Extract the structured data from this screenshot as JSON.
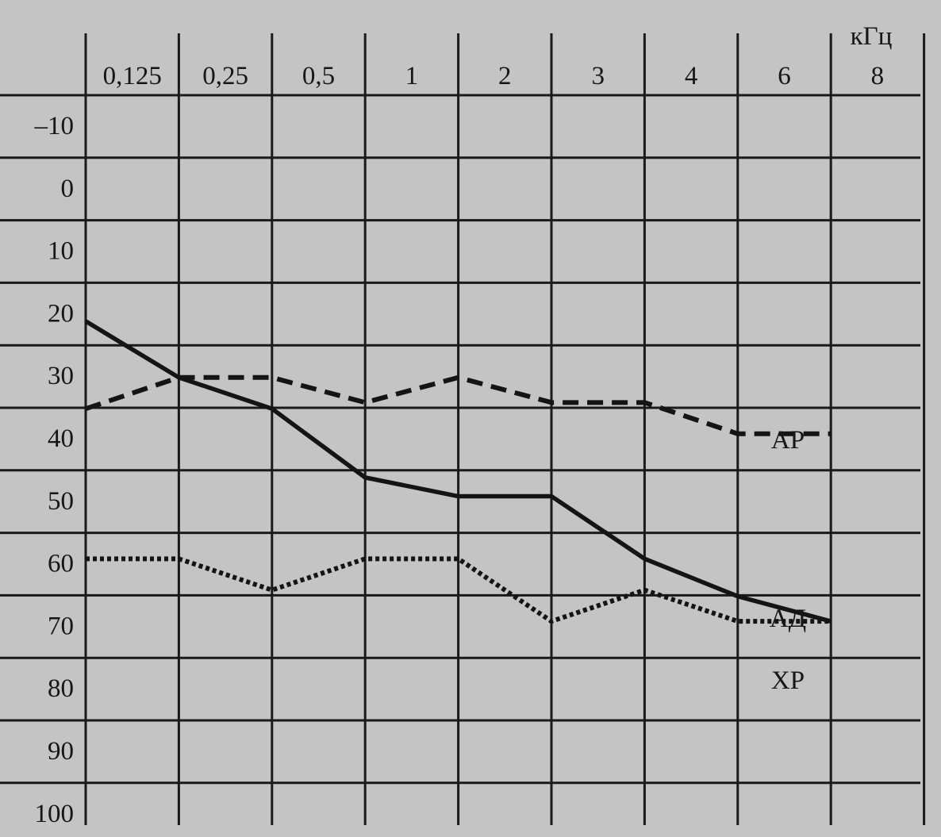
{
  "chart_data": {
    "type": "line",
    "x_unit": "кГц",
    "categories": [
      "0,125",
      "0,25",
      "0,5",
      "1",
      "2",
      "3",
      "4",
      "6",
      "8"
    ],
    "y_ticks": [
      "–10",
      "0",
      "10",
      "20",
      "30",
      "40",
      "50",
      "60",
      "70",
      "80",
      "90",
      "100"
    ],
    "ylim": [
      -10,
      100
    ],
    "y_inverted": true,
    "grid": true,
    "series": [
      {
        "name": "АР",
        "style": "dashed",
        "values": [
          40,
          35,
          35,
          39,
          35,
          39,
          39,
          44,
          44
        ]
      },
      {
        "name": "АД",
        "style": "solid",
        "values": [
          26,
          35,
          40,
          51,
          54,
          54,
          64,
          70,
          74
        ]
      },
      {
        "name": "ХР",
        "style": "dotted",
        "values": [
          64,
          64,
          69,
          64,
          64,
          74,
          69,
          74,
          74
        ]
      }
    ]
  },
  "colors": {
    "background": "#c4c4c4",
    "ink": "#141414"
  }
}
